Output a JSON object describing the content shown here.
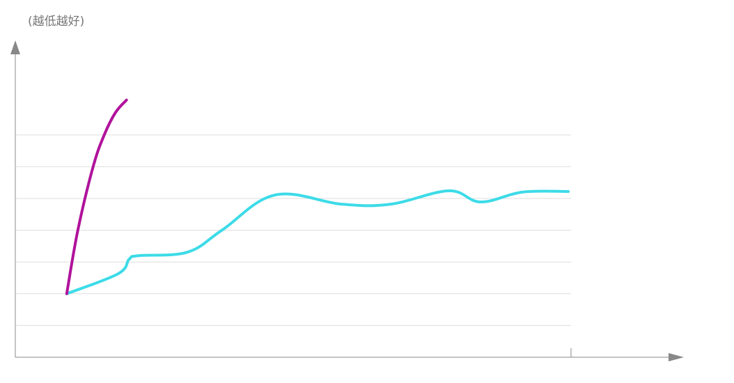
{
  "chart_data": {
    "type": "line",
    "y_label": "(越低越好)",
    "xlim": [
      0,
      48
    ],
    "xticks": [
      40
    ],
    "ylim": [
      0,
      10
    ],
    "yticks": [
      1,
      2,
      3,
      4,
      5,
      6,
      7
    ],
    "grid": true,
    "series": [
      {
        "color": "#3ddbe8",
        "x": [
          3.7,
          7.4,
          8.2,
          8.9,
          12.4,
          14.9,
          18.7,
          23.5,
          27,
          31.2,
          33.5,
          36.5,
          39.8
        ],
        "values": [
          2.0,
          2.63,
          3.09,
          3.2,
          3.31,
          4.01,
          5.11,
          4.82,
          4.82,
          5.24,
          4.89,
          5.2,
          5.22
        ]
      },
      {
        "color": "#b0129b",
        "x": [
          3.7,
          4.5,
          5.6,
          6.4,
          7.2,
          8.0
        ],
        "values": [
          2.0,
          4.0,
          6.0,
          7.0,
          7.7,
          8.1
        ]
      }
    ]
  }
}
